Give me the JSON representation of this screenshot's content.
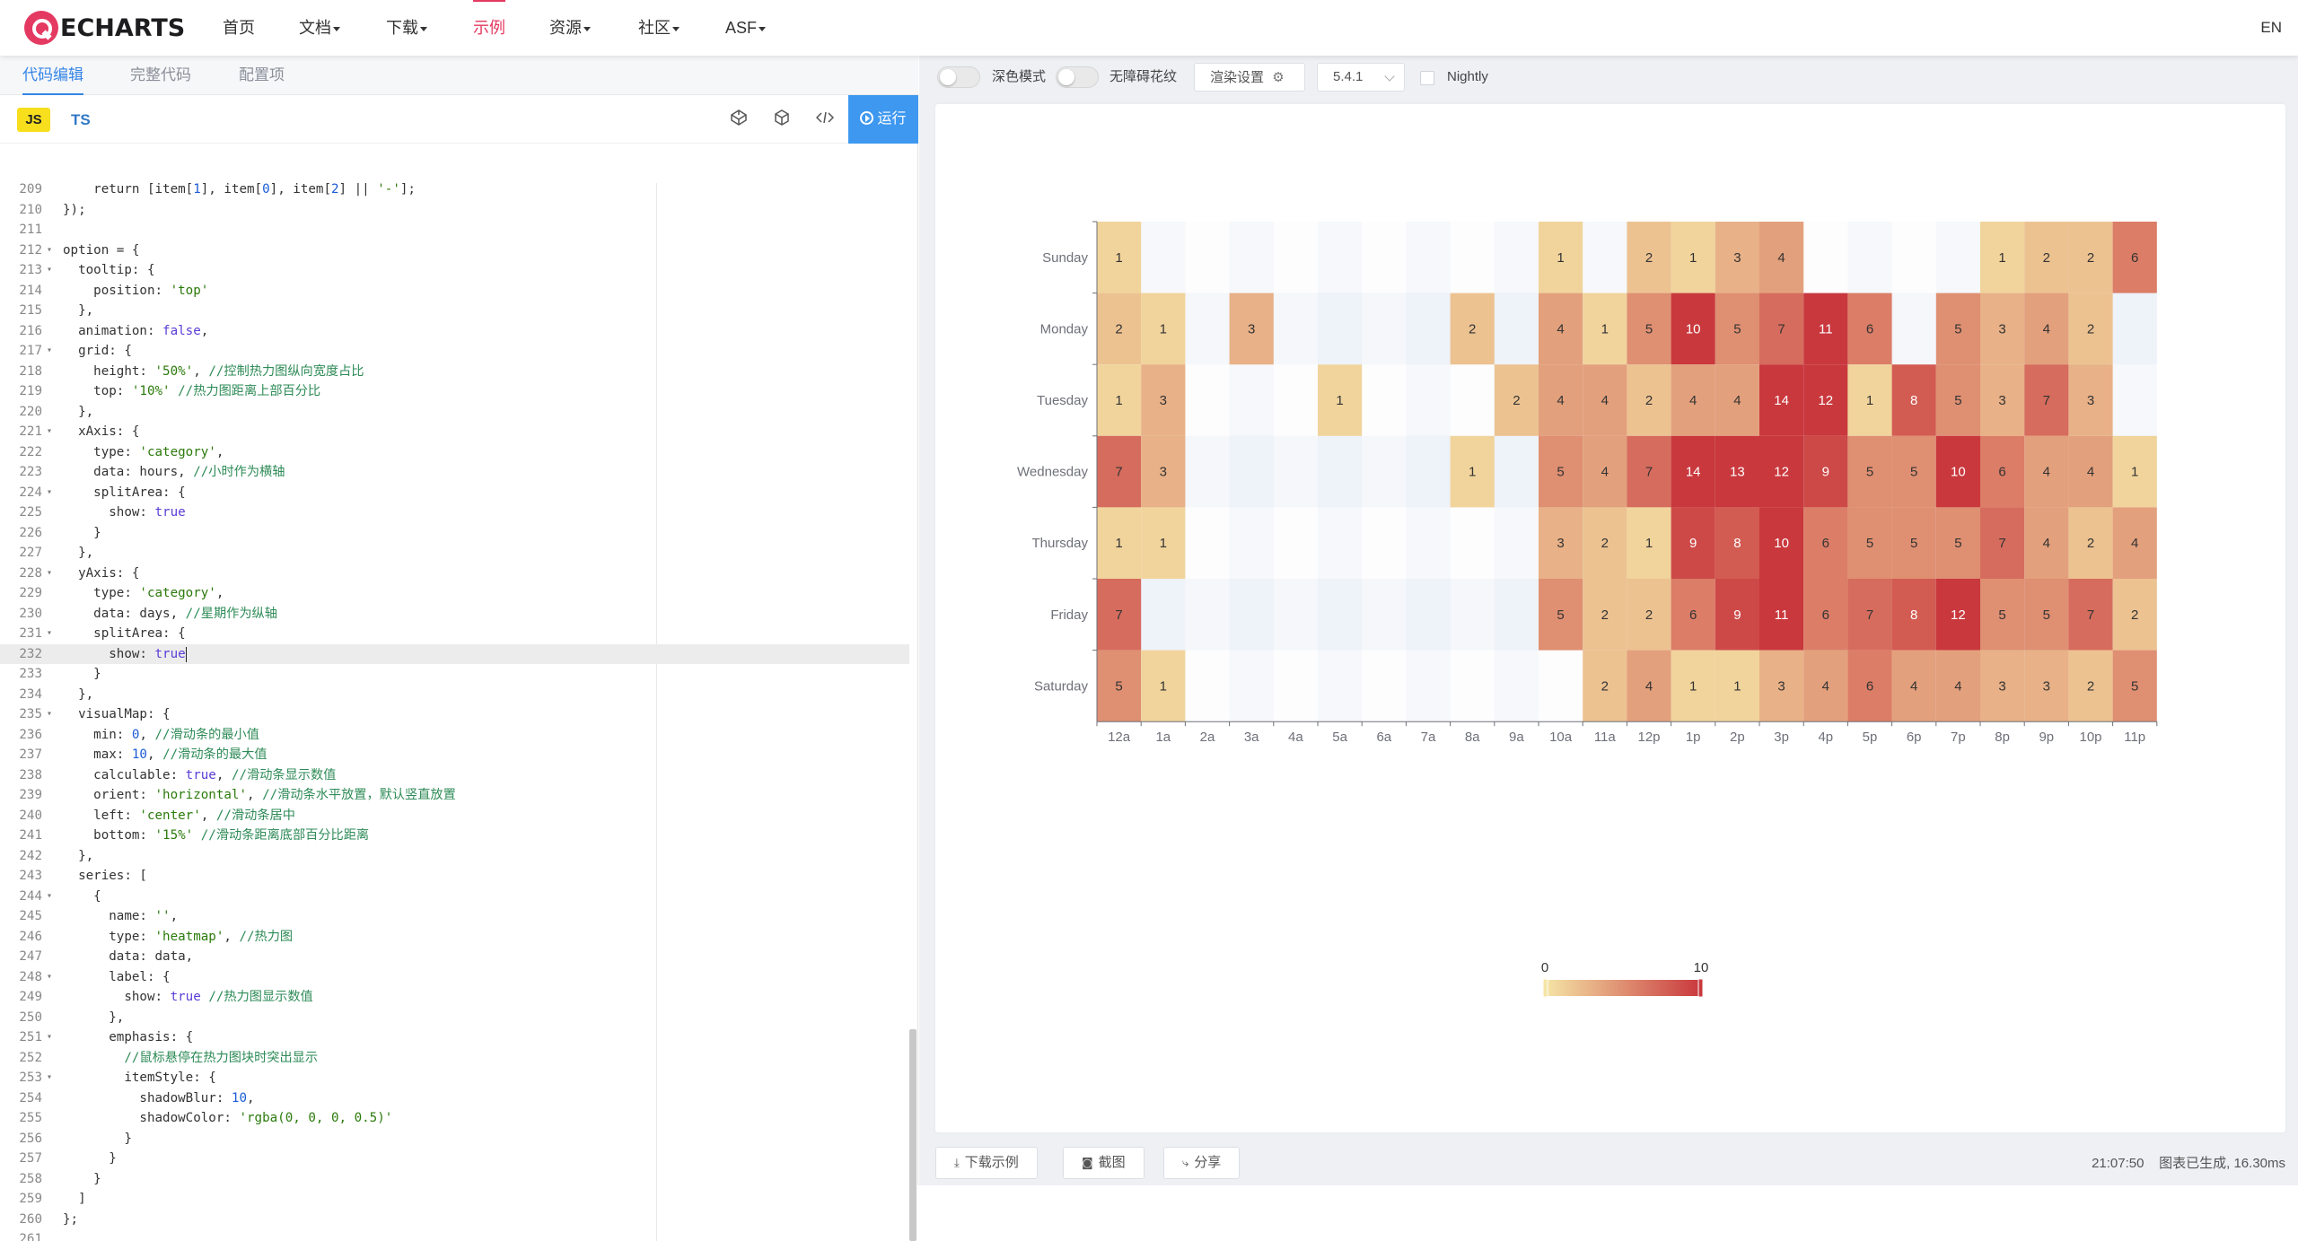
{
  "navbar": {
    "logo_text": "ECHARTS",
    "items": [
      {
        "label": "首页",
        "dropdown": false
      },
      {
        "label": "文档",
        "dropdown": true
      },
      {
        "label": "下载",
        "dropdown": true
      },
      {
        "label": "示例",
        "dropdown": false,
        "active": true
      },
      {
        "label": "资源",
        "dropdown": true
      },
      {
        "label": "社区",
        "dropdown": true
      },
      {
        "label": "ASF",
        "dropdown": true
      }
    ],
    "lang": "EN",
    "accent_color": "#e43961"
  },
  "editor": {
    "tabs": [
      "代码编辑",
      "完整代码",
      "配置项"
    ],
    "active_tab": 0,
    "lang_js": "JS",
    "lang_ts": "TS",
    "run_label": "运行",
    "tool_icons": [
      "codepen-icon",
      "codesandbox-icon",
      "embed-code-icon"
    ],
    "current_line": 232,
    "lines": [
      {
        "n": 209,
        "fold": false,
        "text": "    return [item[1], item[0], item[2] || '-'];"
      },
      {
        "n": 210,
        "fold": false,
        "text": "});"
      },
      {
        "n": 211,
        "fold": false,
        "text": ""
      },
      {
        "n": 212,
        "fold": true,
        "text": "option = {"
      },
      {
        "n": 213,
        "fold": true,
        "text": "  tooltip: {"
      },
      {
        "n": 214,
        "fold": false,
        "text": "    position: 'top'"
      },
      {
        "n": 215,
        "fold": false,
        "text": "  },"
      },
      {
        "n": 216,
        "fold": false,
        "text": "  animation: false,"
      },
      {
        "n": 217,
        "fold": true,
        "text": "  grid: {"
      },
      {
        "n": 218,
        "fold": false,
        "text": "    height: '50%', //控制热力图纵向宽度占比"
      },
      {
        "n": 219,
        "fold": false,
        "text": "    top: '10%' //热力图距离上部百分比"
      },
      {
        "n": 220,
        "fold": false,
        "text": "  },"
      },
      {
        "n": 221,
        "fold": true,
        "text": "  xAxis: {"
      },
      {
        "n": 222,
        "fold": false,
        "text": "    type: 'category',"
      },
      {
        "n": 223,
        "fold": false,
        "text": "    data: hours, //小时作为横轴"
      },
      {
        "n": 224,
        "fold": true,
        "text": "    splitArea: {"
      },
      {
        "n": 225,
        "fold": false,
        "text": "      show: true"
      },
      {
        "n": 226,
        "fold": false,
        "text": "    }"
      },
      {
        "n": 227,
        "fold": false,
        "text": "  },"
      },
      {
        "n": 228,
        "fold": true,
        "text": "  yAxis: {"
      },
      {
        "n": 229,
        "fold": false,
        "text": "    type: 'category',"
      },
      {
        "n": 230,
        "fold": false,
        "text": "    data: days, //星期作为纵轴"
      },
      {
        "n": 231,
        "fold": true,
        "text": "    splitArea: {"
      },
      {
        "n": 232,
        "fold": false,
        "text": "      show: true"
      },
      {
        "n": 233,
        "fold": false,
        "text": "    }"
      },
      {
        "n": 234,
        "fold": false,
        "text": "  },"
      },
      {
        "n": 235,
        "fold": true,
        "text": "  visualMap: {"
      },
      {
        "n": 236,
        "fold": false,
        "text": "    min: 0, //滑动条的最小值"
      },
      {
        "n": 237,
        "fold": false,
        "text": "    max: 10, //滑动条的最大值"
      },
      {
        "n": 238,
        "fold": false,
        "text": "    calculable: true, //滑动条显示数值"
      },
      {
        "n": 239,
        "fold": false,
        "text": "    orient: 'horizontal', //滑动条水平放置，默认竖直放置"
      },
      {
        "n": 240,
        "fold": false,
        "text": "    left: 'center', //滑动条居中"
      },
      {
        "n": 241,
        "fold": false,
        "text": "    bottom: '15%' //滑动条距离底部百分比距离"
      },
      {
        "n": 242,
        "fold": false,
        "text": "  },"
      },
      {
        "n": 243,
        "fold": false,
        "text": "  series: ["
      },
      {
        "n": 244,
        "fold": true,
        "text": "    {"
      },
      {
        "n": 245,
        "fold": false,
        "text": "      name: '',"
      },
      {
        "n": 246,
        "fold": false,
        "text": "      type: 'heatmap', //热力图"
      },
      {
        "n": 247,
        "fold": false,
        "text": "      data: data,"
      },
      {
        "n": 248,
        "fold": true,
        "text": "      label: {"
      },
      {
        "n": 249,
        "fold": false,
        "text": "        show: true //热力图显示数值"
      },
      {
        "n": 250,
        "fold": false,
        "text": "      },"
      },
      {
        "n": 251,
        "fold": true,
        "text": "      emphasis: {"
      },
      {
        "n": 252,
        "fold": false,
        "text": "        //鼠标悬停在热力图块时突出显示"
      },
      {
        "n": 253,
        "fold": true,
        "text": "        itemStyle: {"
      },
      {
        "n": 254,
        "fold": false,
        "text": "          shadowBlur: 10,"
      },
      {
        "n": 255,
        "fold": false,
        "text": "          shadowColor: 'rgba(0, 0, 0, 0.5)'"
      },
      {
        "n": 256,
        "fold": false,
        "text": "        }"
      },
      {
        "n": 257,
        "fold": false,
        "text": "      }"
      },
      {
        "n": 258,
        "fold": false,
        "text": "    }"
      },
      {
        "n": 259,
        "fold": false,
        "text": "  ]"
      },
      {
        "n": 260,
        "fold": false,
        "text": "};"
      },
      {
        "n": 261,
        "fold": false,
        "text": ""
      }
    ]
  },
  "preview": {
    "dark_mode_label": "深色模式",
    "a11y_label": "无障碍花纹",
    "render_settings_label": "渲染设置",
    "version": "5.4.1",
    "nightly_label": "Nightly",
    "download_label": "下载示例",
    "screenshot_label": "截图",
    "share_label": "分享",
    "time": "21:07:50",
    "status": "图表已生成, 16.30ms"
  },
  "chart_data": {
    "type": "heatmap",
    "x": [
      "12a",
      "1a",
      "2a",
      "3a",
      "4a",
      "5a",
      "6a",
      "7a",
      "8a",
      "9a",
      "10a",
      "11a",
      "12p",
      "1p",
      "2p",
      "3p",
      "4p",
      "5p",
      "6p",
      "7p",
      "8p",
      "9p",
      "10p",
      "11p"
    ],
    "y": [
      "Sunday",
      "Monday",
      "Tuesday",
      "Wednesday",
      "Thursday",
      "Friday",
      "Saturday"
    ],
    "values": [
      [
        1,
        0,
        0,
        0,
        0,
        0,
        0,
        0,
        0,
        0,
        1,
        0,
        2,
        1,
        3,
        4,
        0,
        0,
        0,
        0,
        1,
        2,
        2,
        6
      ],
      [
        2,
        1,
        0,
        3,
        0,
        0,
        0,
        0,
        2,
        0,
        4,
        1,
        5,
        10,
        5,
        7,
        11,
        6,
        0,
        5,
        3,
        4,
        2,
        0
      ],
      [
        1,
        3,
        0,
        0,
        0,
        1,
        0,
        0,
        0,
        2,
        4,
        4,
        2,
        4,
        4,
        14,
        12,
        1,
        8,
        5,
        3,
        7,
        3,
        0
      ],
      [
        7,
        3,
        0,
        0,
        0,
        0,
        0,
        0,
        1,
        0,
        5,
        4,
        7,
        14,
        13,
        12,
        9,
        5,
        5,
        10,
        6,
        4,
        4,
        1
      ],
      [
        1,
        1,
        0,
        0,
        0,
        0,
        0,
        0,
        0,
        0,
        3,
        2,
        1,
        9,
        8,
        10,
        6,
        5,
        5,
        5,
        7,
        4,
        2,
        4
      ],
      [
        7,
        0,
        0,
        0,
        0,
        0,
        0,
        0,
        0,
        0,
        5,
        2,
        2,
        6,
        9,
        11,
        6,
        7,
        8,
        12,
        5,
        5,
        7,
        2
      ],
      [
        5,
        1,
        0,
        0,
        0,
        0,
        0,
        0,
        0,
        0,
        0,
        2,
        4,
        1,
        1,
        3,
        4,
        6,
        4,
        4,
        3,
        3,
        2,
        5
      ]
    ],
    "visual_map": {
      "min": 0,
      "max": 10,
      "orient": "horizontal",
      "min_label": "0",
      "max_label": "10",
      "color_low": "#f5e5a6",
      "color_high": "#c9383d"
    },
    "split_area": true
  }
}
